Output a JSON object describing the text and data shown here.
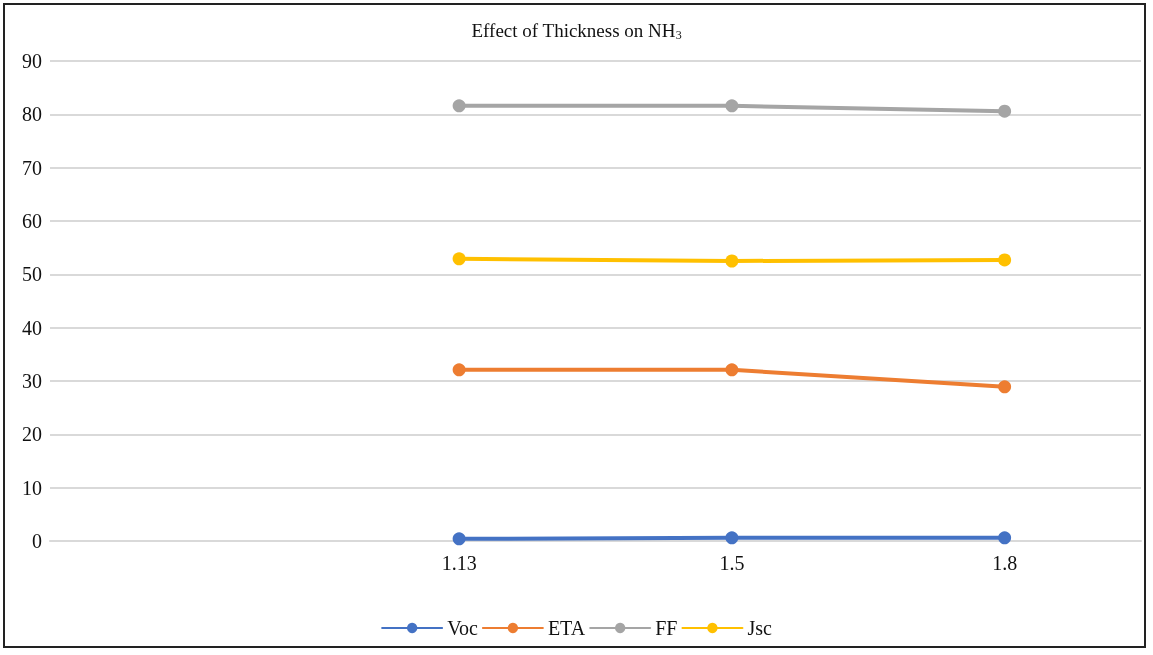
{
  "chart_data": {
    "type": "line",
    "title": "Effect of Thickness on NH$_{3}$",
    "categories": [
      null,
      "1.13",
      "1.5",
      "1.8"
    ],
    "series": [
      {
        "name": "Voc",
        "color": "#4472c4",
        "values": [
          null,
          0.4,
          0.6,
          0.6
        ]
      },
      {
        "name": "ETA",
        "color": "#ed7d31",
        "values": [
          null,
          32.1,
          32.1,
          28.9
        ]
      },
      {
        "name": "FF",
        "color": "#a5a5a5",
        "values": [
          null,
          81.6,
          81.6,
          80.6
        ]
      },
      {
        "name": "Jsc",
        "color": "#ffc000",
        "values": [
          null,
          52.9,
          52.5,
          52.7
        ]
      }
    ],
    "ylim": [
      0,
      90
    ],
    "yticks": [
      0,
      10,
      20,
      30,
      40,
      50,
      60,
      70,
      80,
      90
    ],
    "grid": "y",
    "legend": "bottom",
    "marker": "circle",
    "line_style": "solid"
  }
}
